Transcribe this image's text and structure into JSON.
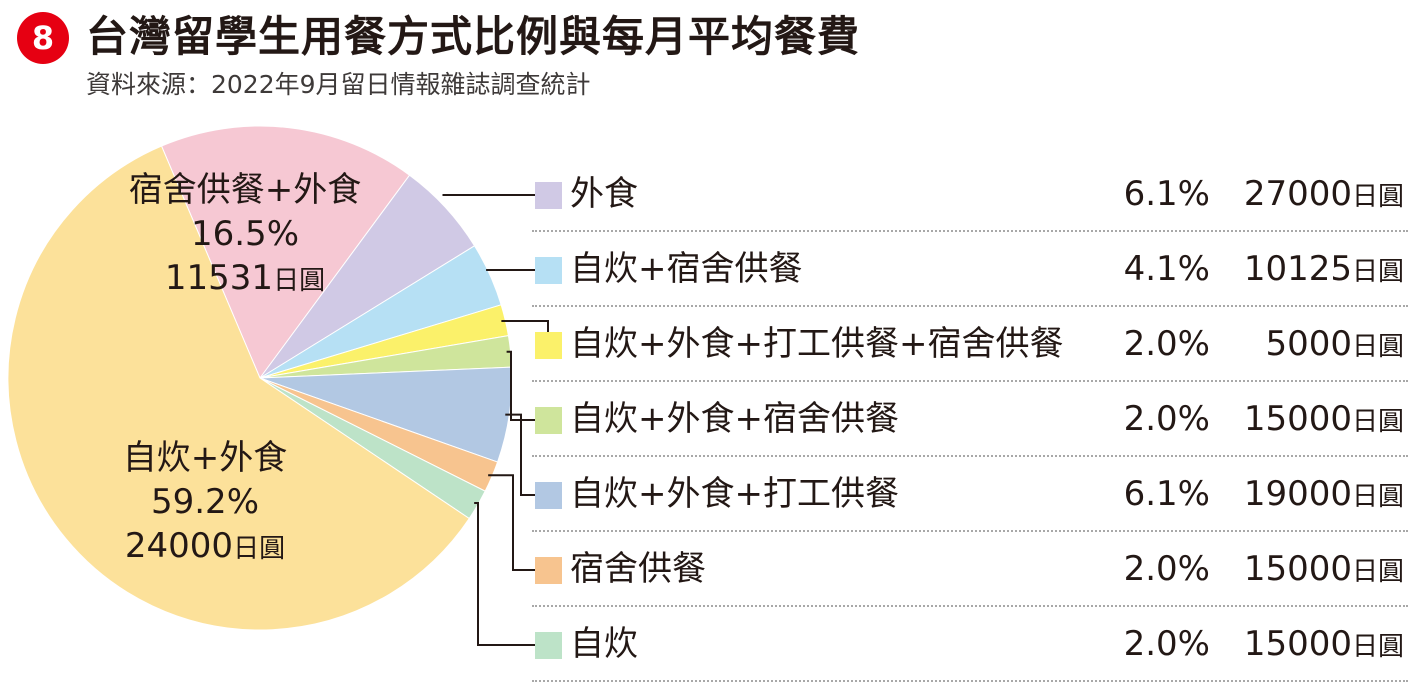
{
  "badge": "8",
  "title": "台灣留學生用餐方式比例與每月平均餐費",
  "source": "資料來源：2022年9月留日情報雜誌調查統計",
  "chart_data": {
    "type": "pie",
    "title": "台灣留學生用餐方式比例與每月平均餐費",
    "unit_label": "日圓",
    "slices": [
      {
        "name": "宿舍供餐+外食",
        "percent": 16.5,
        "pct_label": "16.5%",
        "amount": "11531",
        "color": "#f6c8d3"
      },
      {
        "name": "外食",
        "percent": 6.1,
        "pct_label": "6.1%",
        "amount": "27000",
        "color": "#d0c9e5"
      },
      {
        "name": "自炊+宿舍供餐",
        "percent": 4.1,
        "pct_label": "4.1%",
        "amount": "10125",
        "color": "#b6e0f4"
      },
      {
        "name": "自炊+外食+打工供餐+宿舍供餐",
        "percent": 2.0,
        "pct_label": "2.0%",
        "amount": "5000",
        "color": "#fbf16a"
      },
      {
        "name": "自炊+外食+宿舍供餐",
        "percent": 2.0,
        "pct_label": "2.0%",
        "amount": "15000",
        "color": "#cfe59c"
      },
      {
        "name": "自炊+外食+打工供餐",
        "percent": 6.1,
        "pct_label": "6.1%",
        "amount": "19000",
        "color": "#b2c8e3"
      },
      {
        "name": "宿舍供餐",
        "percent": 2.0,
        "pct_label": "2.0%",
        "amount": "15000",
        "color": "#f7c48f"
      },
      {
        "name": "自炊",
        "percent": 2.0,
        "pct_label": "2.0%",
        "amount": "15000",
        "color": "#bde3c8"
      },
      {
        "name": "自炊+外食",
        "percent": 59.2,
        "pct_label": "59.2%",
        "amount": "24000",
        "color": "#fce19a"
      }
    ],
    "inside_labels": [
      0,
      8
    ],
    "legend_order": [
      1,
      2,
      3,
      4,
      5,
      6,
      7
    ]
  },
  "pie_labels": [
    {
      "name": "宿舍供餐+外食",
      "pct": "16.5%",
      "amount": "11531",
      "unit": "日圓"
    },
    {
      "name": "自炊+外食",
      "pct": "59.2%",
      "amount": "24000",
      "unit": "日圓"
    }
  ],
  "legend": [
    {
      "name": "外食",
      "pct": "6.1%",
      "amount": "27000",
      "unit": "日圓"
    },
    {
      "name": "自炊+宿舍供餐",
      "pct": "4.1%",
      "amount": "10125",
      "unit": "日圓"
    },
    {
      "name": "自炊+外食+打工供餐+宿舍供餐",
      "pct": "2.0%",
      "amount": "5000",
      "unit": "日圓"
    },
    {
      "name": "自炊+外食+宿舍供餐",
      "pct": "2.0%",
      "amount": "15000",
      "unit": "日圓"
    },
    {
      "name": "自炊+外食+打工供餐",
      "pct": "6.1%",
      "amount": "19000",
      "unit": "日圓"
    },
    {
      "name": "宿舍供餐",
      "pct": "2.0%",
      "amount": "15000",
      "unit": "日圓"
    },
    {
      "name": "自炊",
      "pct": "2.0%",
      "amount": "15000",
      "unit": "日圓"
    }
  ]
}
